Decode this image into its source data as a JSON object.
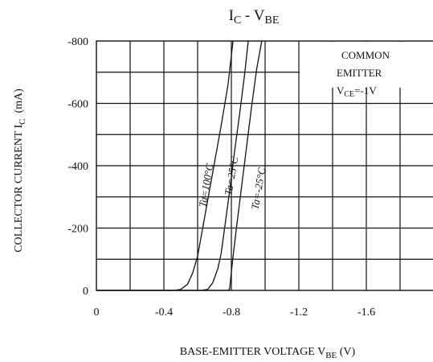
{
  "chart_data": {
    "type": "line",
    "title": {
      "main": "I",
      "main_sub": "C",
      "sep": " - ",
      "second": "V",
      "second_sub": "BE"
    },
    "xlabel": {
      "main": "BASE-EMITTER VOLTAGE V",
      "sub": "BE",
      "unit": "(V)"
    },
    "ylabel": {
      "main": "COLLECTOR CURRENT I",
      "sub": "C",
      "unit": "(mA)"
    },
    "xlim": [
      0,
      -2.0
    ],
    "ylim": [
      0,
      -800
    ],
    "x_ticks": [
      {
        "value": 0,
        "label": "0"
      },
      {
        "value": -0.4,
        "label": "-0.4"
      },
      {
        "value": -0.8,
        "label": "-0.8"
      },
      {
        "value": -1.2,
        "label": "-1.2"
      },
      {
        "value": -1.6,
        "label": "-1.6"
      }
    ],
    "y_ticks": [
      {
        "value": 0,
        "label": "0"
      },
      {
        "value": -200,
        "label": "-200"
      },
      {
        "value": -400,
        "label": "-400"
      },
      {
        "value": -600,
        "label": "-600"
      },
      {
        "value": -800,
        "label": "-800"
      }
    ],
    "x_gridlines": [
      -0.2,
      -0.4,
      -0.6,
      -0.8,
      -1.0,
      -1.2,
      -1.4,
      -1.6,
      -1.8
    ],
    "y_gridlines": [
      -100,
      -200,
      -300,
      -400,
      -500,
      -600,
      -700
    ],
    "grid": true,
    "note": {
      "line1": "COMMON",
      "line2": "EMITTER",
      "line3_main": "V",
      "line3_sub": "CE",
      "line3_value": "=-1V",
      "placement": "top-right"
    },
    "series": [
      {
        "name": "Ta=100°C",
        "x": [
          -0.46,
          -0.5,
          -0.54,
          -0.57,
          -0.6,
          -0.63,
          -0.66,
          -0.7,
          -0.74,
          -0.78,
          -0.81
        ],
        "y": [
          0,
          -3,
          -20,
          -55,
          -110,
          -200,
          -290,
          -410,
          -530,
          -660,
          -800
        ]
      },
      {
        "name": "Ta=25°C",
        "x": [
          -0.62,
          -0.66,
          -0.69,
          -0.72,
          -0.74,
          -0.76,
          -0.79,
          -0.82,
          -0.85,
          -0.88,
          -0.9
        ],
        "y": [
          0,
          -3,
          -25,
          -70,
          -120,
          -200,
          -320,
          -450,
          -570,
          -700,
          -800
        ]
      },
      {
        "name": "Ta=-25°C",
        "x": [
          -0.78,
          -0.79,
          -0.8,
          -0.815,
          -0.83,
          -0.86,
          -0.89,
          -0.92,
          -0.95,
          -0.98
        ],
        "y": [
          0,
          -5,
          -60,
          -130,
          -200,
          -330,
          -460,
          -590,
          -710,
          -800
        ]
      }
    ]
  }
}
